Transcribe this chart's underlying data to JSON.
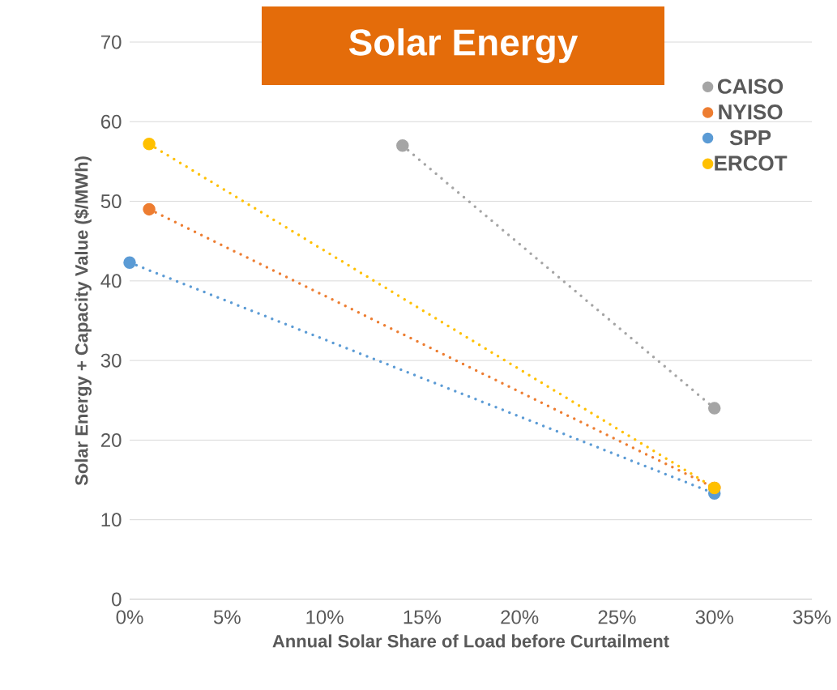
{
  "chart_data": {
    "type": "line",
    "title": "Solar Energy",
    "xlabel": "Annual Solar Share of Load before Curtailment",
    "ylabel": "Solar Energy + Capacity Value ($/MWh)",
    "series": [
      {
        "name": "CAISO",
        "color": "#a5a5a5",
        "x": [
          14,
          30
        ],
        "values": [
          57,
          24
        ]
      },
      {
        "name": "NYISO",
        "color": "#ed7d31",
        "x": [
          1,
          30
        ],
        "values": [
          49,
          14
        ]
      },
      {
        "name": "SPP",
        "color": "#5b9bd5",
        "x": [
          0,
          30
        ],
        "values": [
          42.3,
          13.3
        ]
      },
      {
        "name": "ERCOT",
        "color": "#ffc000",
        "x": [
          1,
          30
        ],
        "values": [
          57.2,
          14
        ]
      }
    ],
    "xlim": [
      0,
      35
    ],
    "ylim": [
      0,
      70
    ],
    "xticks": [
      {
        "value": 0,
        "label": "0%"
      },
      {
        "value": 5,
        "label": "5%"
      },
      {
        "value": 10,
        "label": "10%"
      },
      {
        "value": 15,
        "label": "15%"
      },
      {
        "value": 20,
        "label": "20%"
      },
      {
        "value": 25,
        "label": "25%"
      },
      {
        "value": 30,
        "label": "30%"
      },
      {
        "value": 35,
        "label": "35%"
      }
    ],
    "yticks": [
      0,
      10,
      20,
      30,
      40,
      50,
      60,
      70
    ],
    "grid": "y",
    "legend": "top right",
    "marker": "circle",
    "line_style": "dotted"
  }
}
